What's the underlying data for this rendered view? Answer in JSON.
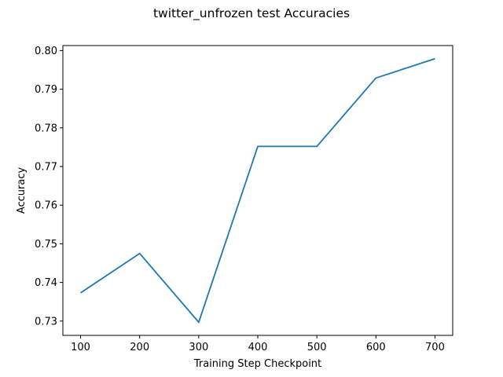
{
  "chart_data": {
    "type": "line",
    "title": "twitter_unfrozen test Accuracies",
    "xlabel": "Training Step Checkpoint",
    "ylabel": "Accuracy",
    "x": [
      100,
      200,
      300,
      400,
      500,
      600,
      700
    ],
    "series": [
      {
        "values": [
          0.7373,
          0.7475,
          0.7297,
          0.7752,
          0.7752,
          0.7929,
          0.7979
        ],
        "color": "#1f77b4"
      }
    ],
    "xticks": [
      100,
      200,
      300,
      400,
      500,
      600,
      700
    ],
    "yticks": [
      0.73,
      0.74,
      0.75,
      0.76,
      0.77,
      0.78,
      0.79,
      0.8
    ],
    "ytick_labels": [
      "0.73",
      "0.74",
      "0.75",
      "0.76",
      "0.77",
      "0.78",
      "0.79",
      "0.80"
    ],
    "xlim": [
      70,
      730
    ],
    "ylim": [
      0.7263,
      0.8013
    ],
    "grid": false,
    "legend": "none"
  }
}
